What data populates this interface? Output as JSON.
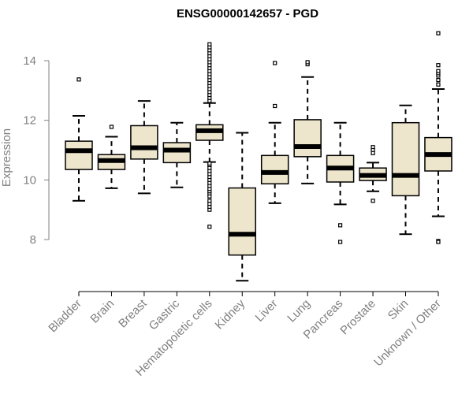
{
  "chart_data": {
    "type": "boxplot",
    "title": "ENSG00000142657 - PGD",
    "xlabel": "",
    "ylabel": "Expression",
    "ylim": [
      6.5,
      15.0
    ],
    "yticks": [
      8,
      10,
      12,
      14
    ],
    "grid": false,
    "colors": {
      "box_fill": "#ede6cc",
      "box_stroke": "#000000",
      "median": "#000000",
      "axis": "#808080",
      "title": "#000000"
    },
    "categories": [
      "Bladder",
      "Brain",
      "Breast",
      "Gastric",
      "Hematopoietic cells",
      "Kidney",
      "Liver",
      "Lung",
      "Pancreas",
      "Prostate",
      "Skin",
      "Unknown / Other"
    ],
    "series": [
      {
        "name": "Bladder",
        "whisker_low": 9.3,
        "q1": 10.35,
        "median": 10.98,
        "q3": 11.3,
        "whisker_high": 12.15,
        "outliers": [
          13.37
        ]
      },
      {
        "name": "Brain",
        "whisker_low": 9.72,
        "q1": 10.35,
        "median": 10.65,
        "q3": 10.85,
        "whisker_high": 11.45,
        "outliers": [
          11.78
        ]
      },
      {
        "name": "Breast",
        "whisker_low": 9.55,
        "q1": 10.7,
        "median": 11.08,
        "q3": 11.82,
        "whisker_high": 12.65,
        "outliers": []
      },
      {
        "name": "Gastric",
        "whisker_low": 9.75,
        "q1": 10.58,
        "median": 11.0,
        "q3": 11.25,
        "whisker_high": 11.92,
        "outliers": []
      },
      {
        "name": "Hematopoietic cells",
        "whisker_low": 10.6,
        "q1": 11.33,
        "median": 11.65,
        "q3": 11.85,
        "whisker_high": 12.58,
        "outliers": [
          8.43,
          9.0,
          9.1,
          9.2,
          9.3,
          9.45,
          9.55,
          9.62,
          9.7,
          9.8,
          9.9,
          10.0,
          10.1,
          10.2,
          10.3,
          10.4,
          10.5,
          10.55,
          12.65,
          12.75,
          12.85,
          12.95,
          13.05,
          13.15,
          13.25,
          13.35,
          13.45,
          13.55,
          13.65,
          13.75,
          13.85,
          13.95,
          14.05,
          14.15,
          14.25,
          14.35,
          14.45,
          14.55
        ]
      },
      {
        "name": "Kidney",
        "whisker_low": 6.62,
        "q1": 7.48,
        "median": 8.18,
        "q3": 9.73,
        "whisker_high": 11.58,
        "outliers": []
      },
      {
        "name": "Liver",
        "whisker_low": 9.22,
        "q1": 9.87,
        "median": 10.25,
        "q3": 10.82,
        "whisker_high": 11.92,
        "outliers": [
          12.48,
          13.92
        ]
      },
      {
        "name": "Lung",
        "whisker_low": 9.88,
        "q1": 10.78,
        "median": 11.12,
        "q3": 12.02,
        "whisker_high": 13.45,
        "outliers": [
          13.88,
          13.95
        ]
      },
      {
        "name": "Pancreas",
        "whisker_low": 9.18,
        "q1": 9.93,
        "median": 10.4,
        "q3": 10.82,
        "whisker_high": 11.92,
        "outliers": [
          8.48,
          7.92
        ]
      },
      {
        "name": "Prostate",
        "whisker_low": 9.62,
        "q1": 9.98,
        "median": 10.15,
        "q3": 10.4,
        "whisker_high": 10.58,
        "outliers": [
          11.1,
          11.0,
          10.9,
          9.3
        ]
      },
      {
        "name": "Skin",
        "whisker_low": 8.18,
        "q1": 9.47,
        "median": 10.15,
        "q3": 11.92,
        "whisker_high": 12.5,
        "outliers": []
      },
      {
        "name": "Unknown / Other",
        "whisker_low": 8.78,
        "q1": 10.3,
        "median": 10.85,
        "q3": 11.42,
        "whisker_high": 13.05,
        "outliers": [
          7.95,
          7.92,
          13.2,
          13.35,
          13.5,
          13.58,
          13.65,
          13.85,
          14.92
        ]
      }
    ]
  }
}
